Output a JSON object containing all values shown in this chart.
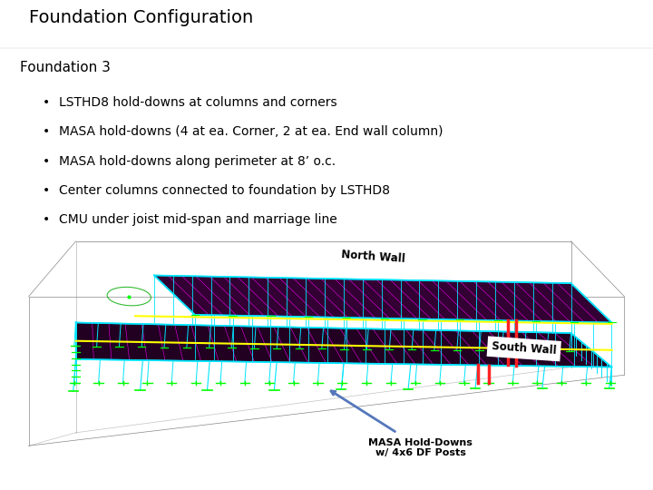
{
  "title": "Foundation Configuration",
  "title_fontsize": 14,
  "subtitle": "Foundation 3",
  "subtitle_fontsize": 11,
  "bullets": [
    "LSTHD8 hold-downs at columns and corners",
    "MASA hold-downs (4 at ea. Corner, 2 at ea. End wall column)",
    "MASA hold-downs along perimeter at 8’ o.c.",
    "Center columns connected to foundation by LSTHD8",
    "CMU under joist mid-span and marriage line"
  ],
  "bullet_fontsize": 10,
  "bg_color": "#ffffff",
  "image_bg": "#000000",
  "north_wall_label": "North Wall",
  "south_wall_label": "South Wall",
  "masa_label": "MASA Hold-Downs\nw/ 4x6 DF Posts",
  "cyan": "#00e5ff",
  "magenta": "#ff00ff",
  "yellow": "#ffff00",
  "green": "#00ff00",
  "white": "#e8e8e8",
  "red": "#ff2222",
  "gray_wall": "#888888"
}
